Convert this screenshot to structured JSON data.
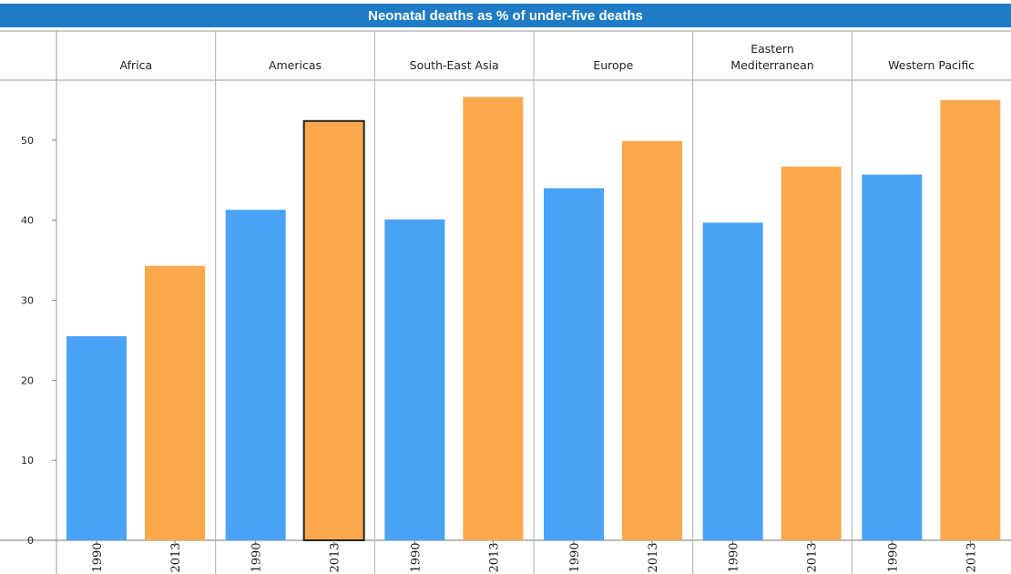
{
  "chart_data": {
    "type": "bar",
    "title": "Neonatal deaths as % of under-five deaths",
    "panels": [
      {
        "label_lines": [
          "Africa"
        ],
        "categories": [
          "1990",
          "2013"
        ],
        "values": [
          25.5,
          34.3
        ]
      },
      {
        "label_lines": [
          "Americas"
        ],
        "categories": [
          "1990",
          "2013"
        ],
        "values": [
          41.3,
          52.4
        ],
        "highlighted": "2013"
      },
      {
        "label_lines": [
          "South-East Asia"
        ],
        "categories": [
          "1990",
          "2013"
        ],
        "values": [
          40.1,
          55.4
        ]
      },
      {
        "label_lines": [
          "Europe"
        ],
        "categories": [
          "1990",
          "2013"
        ],
        "values": [
          44.0,
          49.9
        ]
      },
      {
        "label_lines": [
          "Eastern",
          "Mediterranean"
        ],
        "categories": [
          "1990",
          "2013"
        ],
        "values": [
          39.7,
          46.7
        ]
      },
      {
        "label_lines": [
          "Western Pacific"
        ],
        "categories": [
          "1990",
          "2013"
        ],
        "values": [
          45.7,
          55.0
        ]
      }
    ],
    "y_ticks": [
      0,
      10,
      20,
      30,
      40,
      50
    ],
    "ylim": [
      0,
      57.5
    ],
    "colors": {
      "1990": "#4aa3f7",
      "2013": "#fca94e",
      "title_bar": "#1f7cc4"
    },
    "grid": false,
    "legend": "none"
  }
}
